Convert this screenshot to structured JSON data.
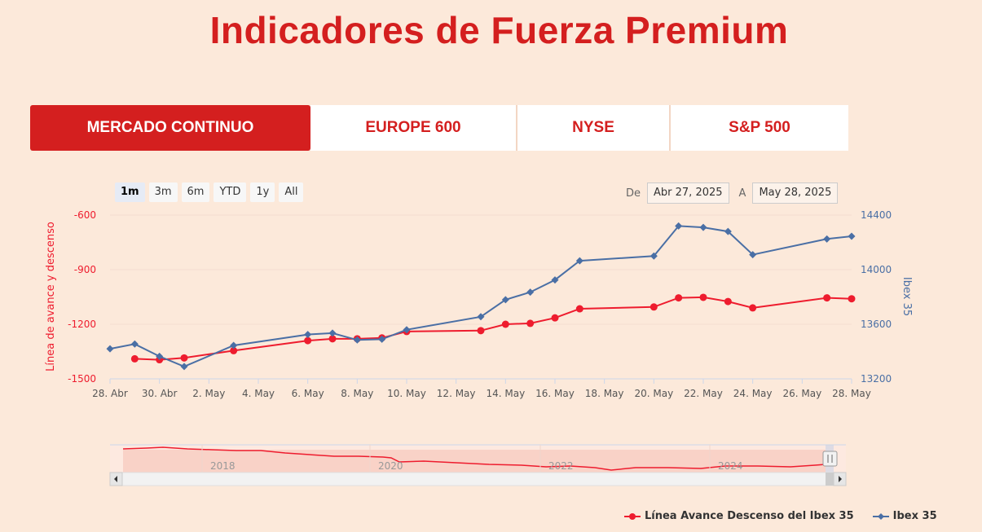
{
  "page": {
    "title": "Indicadores de Fuerza Premium"
  },
  "tabs": [
    {
      "label": "MERCADO CONTINUO",
      "active": true
    },
    {
      "label": "EUROPE 600",
      "active": false
    },
    {
      "label": "NYSE",
      "active": false
    },
    {
      "label": "S&P 500",
      "active": false
    }
  ],
  "range_selector": {
    "buttons": [
      "1m",
      "3m",
      "6m",
      "YTD",
      "1y",
      "All"
    ],
    "selected": "1m",
    "from_label": "De",
    "from_value": "Abr 27, 2025",
    "to_label": "A",
    "to_value": "May 28, 2025"
  },
  "colors": {
    "accent": "#d41f1f",
    "line_red": "#ee1c2e",
    "line_blue": "#4a6fa5",
    "background": "#fce9da"
  },
  "chart_data": {
    "type": "line",
    "title": "",
    "x_tick_labels": [
      "28. Abr",
      "30. Abr",
      "2. May",
      "4. May",
      "6. May",
      "8. May",
      "10. May",
      "12. May",
      "14. May",
      "16. May",
      "18. May",
      "20. May",
      "22. May",
      "24. May",
      "26. May",
      "28. May"
    ],
    "x_range": [
      0,
      30
    ],
    "left_axis": {
      "label": "Línea de avance y descenso",
      "range": [
        -1500,
        -600
      ],
      "ticks": [
        "-600",
        "-900",
        "-1200",
        "-1500"
      ],
      "tick_values": [
        -600,
        -900,
        -1200,
        -1500
      ]
    },
    "right_axis": {
      "label": "Ibex 35",
      "range": [
        13200,
        14400
      ],
      "ticks": [
        "14400",
        "14000",
        "13600",
        "13200"
      ],
      "tick_values": [
        14400,
        14000,
        13600,
        13200
      ]
    },
    "series": [
      {
        "name": "Línea Avance Descenso del Ibex 35",
        "axis": "left",
        "color": "#ee1c2e",
        "marker": "circle",
        "x": [
          1,
          2,
          3,
          5,
          8,
          9,
          10,
          11,
          12,
          15,
          16,
          17,
          18,
          19,
          22,
          23,
          24,
          25,
          26,
          29,
          30
        ],
        "values": [
          -1390,
          -1395,
          -1385,
          -1345,
          -1290,
          -1280,
          -1280,
          -1275,
          -1240,
          -1235,
          -1200,
          -1195,
          -1165,
          -1115,
          -1105,
          -1055,
          -1052,
          -1075,
          -1110,
          -1055,
          -1060
        ]
      },
      {
        "name": "Ibex 35",
        "axis": "right",
        "color": "#4a6fa5",
        "marker": "diamond",
        "x": [
          0,
          1,
          2,
          3,
          5,
          8,
          9,
          10,
          11,
          12,
          15,
          16,
          17,
          18,
          19,
          22,
          23,
          24,
          25,
          26,
          29,
          30
        ],
        "values": [
          13420,
          13455,
          13365,
          13290,
          13445,
          13525,
          13535,
          13485,
          13490,
          13560,
          13655,
          13780,
          13835,
          13925,
          14065,
          14100,
          14320,
          14310,
          14280,
          14110,
          14225,
          14245
        ]
      }
    ],
    "navigator": {
      "labels": [
        "2018",
        "2020",
        "2022",
        "2024"
      ]
    }
  }
}
